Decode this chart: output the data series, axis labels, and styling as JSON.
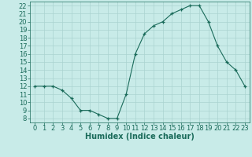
{
  "x": [
    0,
    1,
    2,
    3,
    4,
    5,
    6,
    7,
    8,
    9,
    10,
    11,
    12,
    13,
    14,
    15,
    16,
    17,
    18,
    19,
    20,
    21,
    22,
    23
  ],
  "y": [
    12,
    12,
    12,
    11.5,
    10.5,
    9,
    9,
    8.5,
    8,
    8,
    11,
    16,
    18.5,
    19.5,
    20,
    21,
    21.5,
    22,
    22,
    20,
    17,
    15,
    14,
    12
  ],
  "line_color": "#1a6b5a",
  "marker": "+",
  "bg_color": "#c8ebe8",
  "grid_color": "#aad4d0",
  "xlabel": "Humidex (Indice chaleur)",
  "xlabel_fontsize": 7,
  "tick_fontsize": 6,
  "ylim": [
    7.5,
    22.5
  ],
  "xlim": [
    -0.5,
    23.5
  ],
  "yticks": [
    8,
    9,
    10,
    11,
    12,
    13,
    14,
    15,
    16,
    17,
    18,
    19,
    20,
    21,
    22
  ],
  "xticks": [
    0,
    1,
    2,
    3,
    4,
    5,
    6,
    7,
    8,
    9,
    10,
    11,
    12,
    13,
    14,
    15,
    16,
    17,
    18,
    19,
    20,
    21,
    22,
    23
  ]
}
